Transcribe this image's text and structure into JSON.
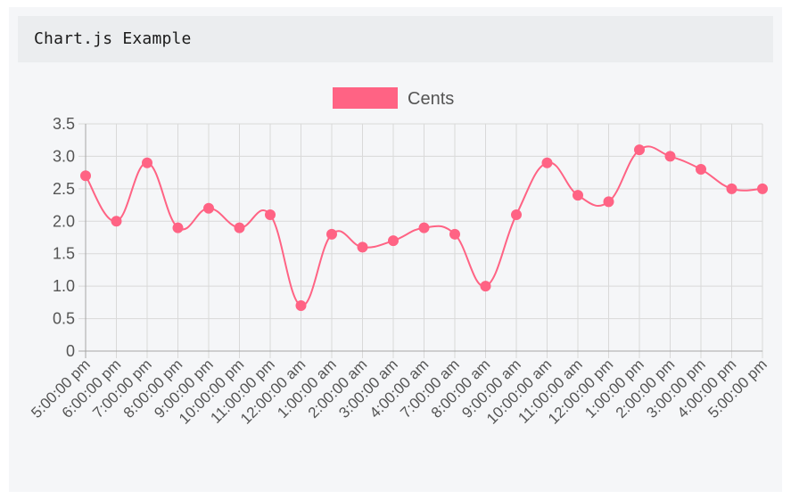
{
  "header": {
    "title": "Chart.js Example"
  },
  "chart_data": {
    "type": "line",
    "legend": {
      "label": "Cents",
      "placement": "top-center"
    },
    "colors": {
      "series": "#ff6384",
      "grid": "#d9d9d9",
      "axis": "#a6a6a6"
    },
    "x": [
      "5:00:00 pm",
      "6:00:00 pm",
      "7:00:00 pm",
      "8:00:00 pm",
      "9:00:00 pm",
      "10:00:00 pm",
      "11:00:00 pm",
      "12:00:00 am",
      "1:00:00 am",
      "2:00:00 am",
      "3:00:00 am",
      "4:00:00 am",
      "7:00:00 am",
      "8:00:00 am",
      "9:00:00 am",
      "10:00:00 am",
      "11:00:00 am",
      "12:00:00 pm",
      "1:00:00 pm",
      "2:00:00 pm",
      "3:00:00 pm",
      "4:00:00 pm",
      "5:00:00 pm"
    ],
    "series": [
      {
        "name": "Cents",
        "values": [
          2.7,
          2.0,
          2.9,
          1.9,
          2.2,
          1.9,
          2.1,
          0.7,
          1.8,
          1.6,
          1.7,
          1.9,
          1.8,
          1.0,
          2.1,
          2.9,
          2.4,
          2.3,
          3.1,
          3.0,
          2.8,
          2.5,
          2.5
        ]
      }
    ],
    "ylim": [
      0,
      3.5
    ],
    "yticks": [
      "0",
      "0.5",
      "1.0",
      "1.5",
      "2.0",
      "2.5",
      "3.0",
      "3.5"
    ],
    "grid": true
  }
}
